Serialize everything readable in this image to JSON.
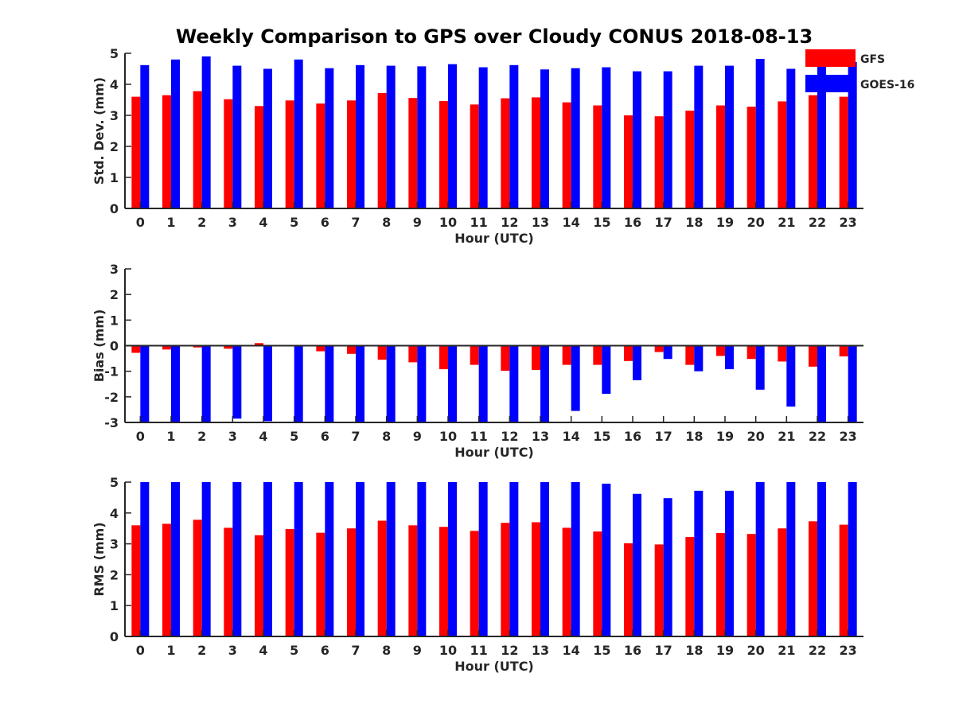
{
  "figure": {
    "title": "Weekly Comparison to GPS over Cloudy CONUS 2018-08-13"
  },
  "legend": {
    "placement": "top-right",
    "entries": [
      {
        "label": "GFS",
        "color": "#ff0000"
      },
      {
        "label": "GOES-16",
        "color": "#0000ff"
      }
    ]
  },
  "chart_data": [
    {
      "type": "bar",
      "title": "Weekly Comparison to GPS over Cloudy CONUS 2018-08-13",
      "xlabel": "Hour (UTC)",
      "ylabel": "Std. Dev. (mm)",
      "ylim": [
        0,
        5
      ],
      "yticks": [
        0,
        1,
        2,
        3,
        4,
        5
      ],
      "grid": false,
      "categories": [
        "0",
        "1",
        "2",
        "3",
        "4",
        "5",
        "6",
        "7",
        "8",
        "9",
        "10",
        "11",
        "12",
        "13",
        "14",
        "15",
        "16",
        "17",
        "18",
        "19",
        "20",
        "21",
        "22",
        "23"
      ],
      "series": [
        {
          "name": "GFS",
          "color": "#ff0000",
          "values": [
            3.6,
            3.65,
            3.78,
            3.52,
            3.3,
            3.48,
            3.38,
            3.48,
            3.72,
            3.56,
            3.46,
            3.35,
            3.55,
            3.58,
            3.42,
            3.32,
            3.0,
            2.97,
            3.15,
            3.32,
            3.28,
            3.45,
            3.65,
            3.6
          ]
        },
        {
          "name": "GOES-16",
          "color": "#0000ff",
          "values": [
            4.62,
            4.8,
            4.9,
            4.6,
            4.5,
            4.8,
            4.52,
            4.62,
            4.6,
            4.58,
            4.65,
            4.55,
            4.62,
            4.48,
            4.52,
            4.55,
            4.42,
            4.42,
            4.6,
            4.6,
            4.82,
            4.5,
            4.75,
            4.72
          ]
        }
      ]
    },
    {
      "type": "bar",
      "xlabel": "Hour (UTC)",
      "ylabel": "Bias (mm)",
      "ylim": [
        -3,
        3
      ],
      "yticks": [
        -3,
        -2,
        -1,
        0,
        1,
        2,
        3
      ],
      "zero_line": true,
      "grid": false,
      "categories": [
        "0",
        "1",
        "2",
        "3",
        "4",
        "5",
        "6",
        "7",
        "8",
        "9",
        "10",
        "11",
        "12",
        "13",
        "14",
        "15",
        "16",
        "17",
        "18",
        "19",
        "20",
        "21",
        "22",
        "23"
      ],
      "series": [
        {
          "name": "GFS",
          "color": "#ff0000",
          "values": [
            -0.28,
            -0.15,
            -0.07,
            -0.12,
            0.1,
            0.0,
            -0.22,
            -0.32,
            -0.55,
            -0.65,
            -0.92,
            -0.75,
            -0.98,
            -0.95,
            -0.75,
            -0.75,
            -0.6,
            -0.25,
            -0.75,
            -0.4,
            -0.52,
            -0.62,
            -0.82,
            -0.42
          ]
        },
        {
          "name": "GOES-16",
          "color": "#0000ff",
          "values": [
            -3.0,
            -3.0,
            -3.0,
            -2.85,
            -2.95,
            -3.0,
            -3.0,
            -3.0,
            -3.0,
            -3.0,
            -3.0,
            -3.0,
            -3.0,
            -3.0,
            -2.55,
            -1.88,
            -1.35,
            -0.52,
            -1.0,
            -0.92,
            -1.72,
            -2.38,
            -3.0,
            -3.0
          ]
        }
      ]
    },
    {
      "type": "bar",
      "xlabel": "Hour (UTC)",
      "ylabel": "RMS (mm)",
      "ylim": [
        0,
        5
      ],
      "yticks": [
        0,
        1,
        2,
        3,
        4,
        5
      ],
      "grid": false,
      "categories": [
        "0",
        "1",
        "2",
        "3",
        "4",
        "5",
        "6",
        "7",
        "8",
        "9",
        "10",
        "11",
        "12",
        "13",
        "14",
        "15",
        "16",
        "17",
        "18",
        "19",
        "20",
        "21",
        "22",
        "23"
      ],
      "series": [
        {
          "name": "GFS",
          "color": "#ff0000",
          "values": [
            3.6,
            3.65,
            3.78,
            3.52,
            3.28,
            3.48,
            3.36,
            3.5,
            3.75,
            3.6,
            3.55,
            3.42,
            3.68,
            3.7,
            3.52,
            3.4,
            3.02,
            2.98,
            3.22,
            3.35,
            3.32,
            3.5,
            3.73,
            3.62
          ]
        },
        {
          "name": "GOES-16",
          "color": "#0000ff",
          "values": [
            5,
            5,
            5,
            5,
            5,
            5,
            5,
            5,
            5,
            5,
            5,
            5,
            5,
            5,
            5,
            4.95,
            4.62,
            4.48,
            4.72,
            4.72,
            5,
            5,
            5,
            5
          ]
        }
      ]
    }
  ]
}
